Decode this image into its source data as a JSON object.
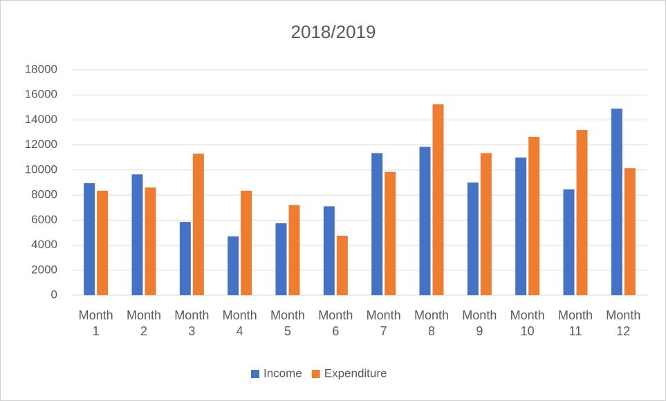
{
  "chart_data": {
    "type": "bar",
    "title": "2018/2019",
    "categories": [
      "Month 1",
      "Month 2",
      "Month 3",
      "Month 4",
      "Month 5",
      "Month 6",
      "Month 7",
      "Month 8",
      "Month 9",
      "Month 10",
      "Month 11",
      "Month 12"
    ],
    "series": [
      {
        "name": "Income",
        "color": "#4472c4",
        "values": [
          8950,
          9650,
          5850,
          4700,
          5750,
          7100,
          11350,
          11850,
          9000,
          11000,
          8450,
          14900
        ]
      },
      {
        "name": "Expenditure",
        "color": "#ed7d31",
        "values": [
          8350,
          8600,
          11300,
          8350,
          7200,
          4750,
          9850,
          15250,
          11350,
          12650,
          13200,
          10150
        ]
      }
    ],
    "ylim": [
      0,
      18000
    ],
    "yticks": [
      0,
      2000,
      4000,
      6000,
      8000,
      10000,
      12000,
      14000,
      16000,
      18000
    ],
    "grid": true,
    "legend": "bottom"
  }
}
